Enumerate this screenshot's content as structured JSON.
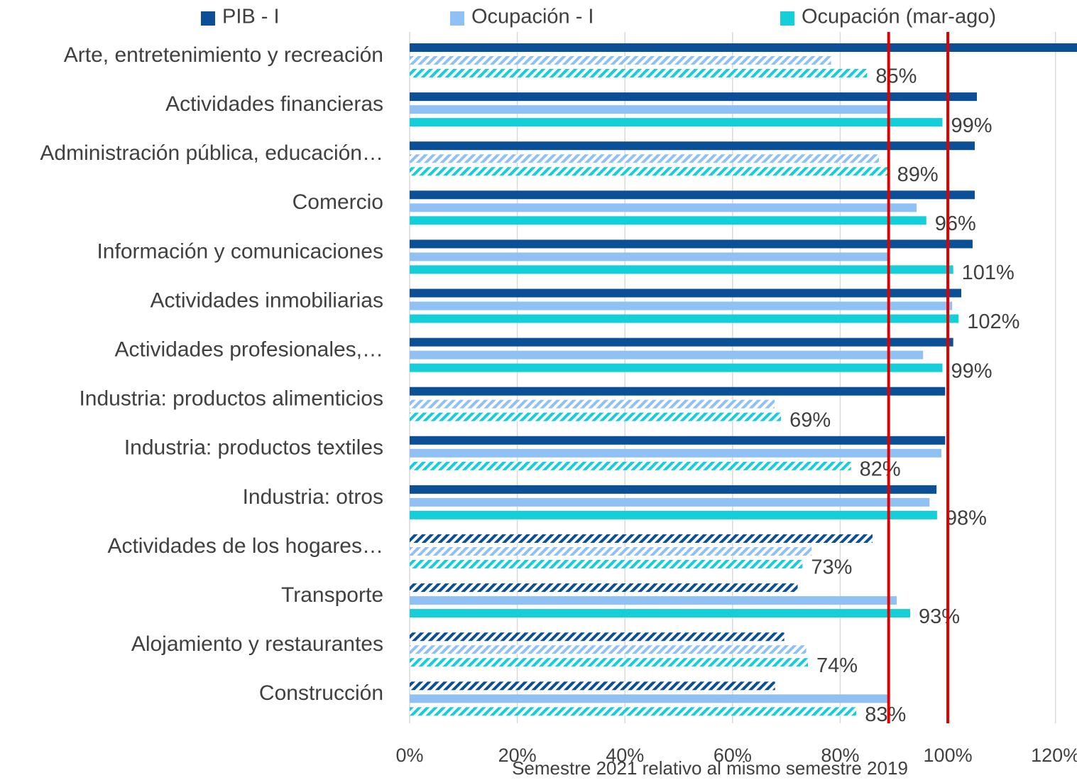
{
  "chart_data": {
    "type": "hbar",
    "categories": [
      "Arte, entretenimiento y recreación",
      "Actividades financieras",
      "Administración pública, educación…",
      "Comercio",
      "Información y comunicaciones",
      "Actividades inmobiliarias",
      "Actividades profesionales,…",
      "Industria: productos alimenticios",
      "Industria: productos textiles",
      "Industria: otros",
      "Actividades de los hogares…",
      "Transporte",
      "Alojamiento y restaurantes",
      "Construcción"
    ],
    "series": [
      {
        "name": "PIB - I",
        "color": "#0b4f96",
        "values": [
          124,
          105.4,
          105,
          105,
          104.6,
          102.5,
          101,
          99.5,
          99.5,
          97.9,
          86,
          72.1,
          69.6,
          67.9
        ],
        "hatched": [
          false,
          false,
          false,
          false,
          false,
          false,
          false,
          false,
          false,
          false,
          true,
          true,
          true,
          true
        ]
      },
      {
        "name": "Ocupación - I",
        "color": "#8fc1f5",
        "values": [
          78.3,
          89,
          87.2,
          94.2,
          89,
          100.8,
          95.4,
          67.8,
          98.8,
          96.6,
          74.7,
          90.5,
          73.7,
          89
        ],
        "hatched": [
          true,
          false,
          true,
          false,
          false,
          false,
          false,
          true,
          false,
          false,
          true,
          false,
          true,
          false
        ]
      },
      {
        "name": "Ocupación (mar-ago)",
        "color": "#14cfda",
        "values": [
          85,
          99,
          89,
          96,
          101,
          102,
          99,
          69,
          82,
          98,
          73,
          93,
          74,
          83
        ],
        "value_labels": [
          "85%",
          "99%",
          "89%",
          "96%",
          "101%",
          "102%",
          "99%",
          "69%",
          "82%",
          "98%",
          "73%",
          "93%",
          "74%",
          "83%"
        ],
        "hatched": [
          true,
          false,
          true,
          false,
          false,
          false,
          false,
          true,
          true,
          false,
          true,
          false,
          true,
          true
        ]
      }
    ],
    "xlim": [
      0,
      124
    ],
    "xticks": [
      {
        "value": 0,
        "label": "0%"
      },
      {
        "value": 20,
        "label": "20%"
      },
      {
        "value": 40,
        "label": "40%"
      },
      {
        "value": 60,
        "label": "60%"
      },
      {
        "value": 80,
        "label": "80%"
      },
      {
        "value": 100,
        "label": "100%"
      },
      {
        "value": 120,
        "label": "120%"
      }
    ],
    "x_label": "Semestre 2021 relativo al mismo semestre 2019",
    "reference_lines": [
      89,
      100
    ],
    "reference_color": "#e00000",
    "grid": true
  }
}
